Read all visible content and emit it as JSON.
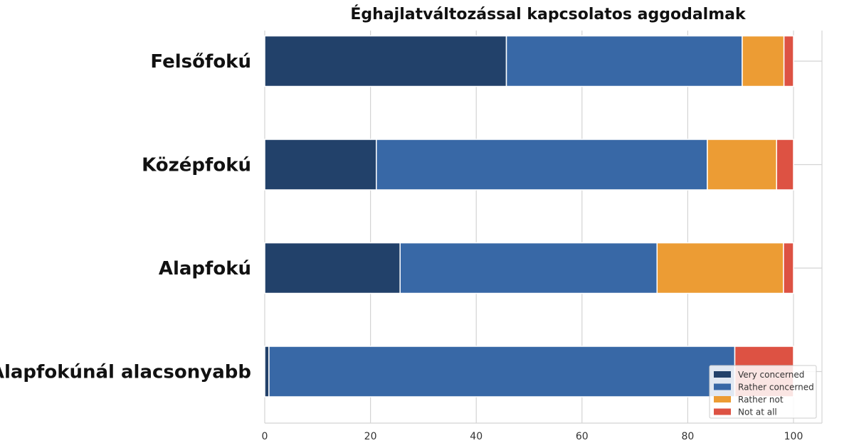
{
  "chart_data": {
    "type": "bar",
    "orientation": "horizontal",
    "stacked": true,
    "title": "Éghajlatváltozással kapcsolatos aggodalmak",
    "categories": [
      "Felsőfokú",
      "Középfokú",
      "Alapfokú",
      "Alapfokúnál alacsonyabb"
    ],
    "series": [
      {
        "name": "Very concerned",
        "color": "#22416a",
        "values": [
          45.7,
          21.1,
          25.6,
          0.8
        ]
      },
      {
        "name": "Rather concerned",
        "color": "#3868a6",
        "values": [
          44.6,
          62.6,
          48.6,
          88.1
        ]
      },
      {
        "name": "Rather not",
        "color": "#ec9c34",
        "values": [
          7.9,
          13.1,
          23.9,
          0
        ]
      },
      {
        "name": "Not at all",
        "color": "#dd5243",
        "values": [
          1.8,
          3.2,
          1.9,
          11.1
        ]
      }
    ],
    "xlim": [
      0,
      105
    ],
    "xticks": [
      "0",
      "20",
      "40",
      "60",
      "80",
      "100"
    ],
    "xlabel": "",
    "ylabel": "",
    "grid": true,
    "legend_position": "bottom-right"
  }
}
